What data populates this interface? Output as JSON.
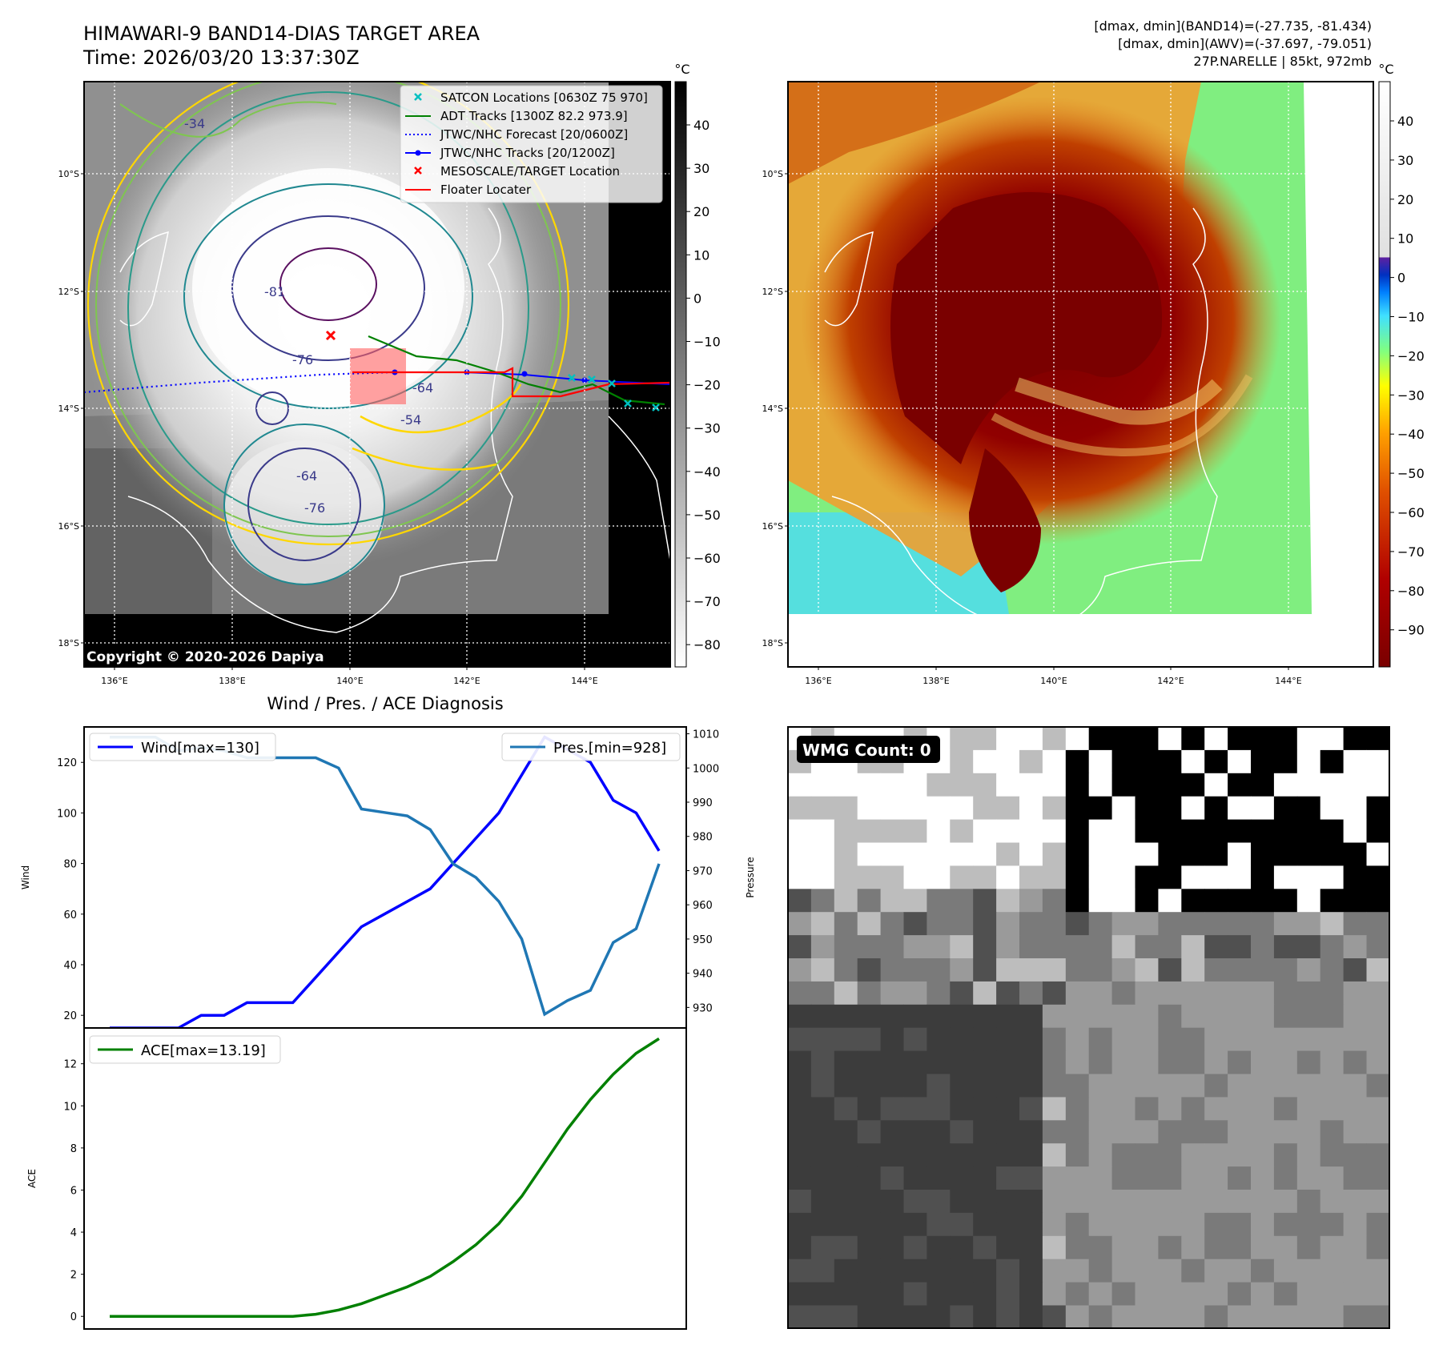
{
  "header": {
    "title": "HIMAWARI-9 BAND14-DIAS TARGET AREA",
    "time": "Time: 2026/03/20 13:37:30Z",
    "stats1": "[dmax, dmin](BAND14)=(-27.735, -81.434)",
    "stats2": "[dmax, dmin](AWV)=(-37.697, -79.051)",
    "storm": "27P.NARELLE | 85kt, 972mb"
  },
  "copyright": "Copyright © 2020-2026 Dapiya",
  "map_axes": {
    "lat_ticks": [
      "10°S",
      "12°S",
      "14°S",
      "16°S",
      "18°S"
    ],
    "lon_ticks": [
      "136°E",
      "138°E",
      "140°E",
      "142°E",
      "144°E"
    ]
  },
  "legend_map": [
    {
      "label": "SATCON Locations [0630Z 75 970]",
      "color": "#00c0c0",
      "marker": "x"
    },
    {
      "label": "ADT Tracks [1300Z 82.2 973.9]",
      "color": "#008000",
      "marker": "line"
    },
    {
      "label": "JTWC/NHC Forecast [20/0600Z]",
      "color": "#0000ff",
      "marker": "dotted"
    },
    {
      "label": "JTWC/NHC Tracks [20/1200Z]",
      "color": "#0000ff",
      "marker": "line-dot"
    },
    {
      "label": "MESOSCALE/TARGET Location",
      "color": "#ff0000",
      "marker": "x"
    },
    {
      "label": "Floater Locater",
      "color": "#ff0000",
      "marker": "line"
    }
  ],
  "contour_labels": [
    "-81",
    "-76",
    "-64",
    "-54",
    "-64",
    "-34",
    "-76"
  ],
  "colorbar_gray": {
    "unit": "°C",
    "ticks": [
      "40",
      "30",
      "20",
      "10",
      "0",
      "−10",
      "−20",
      "−30",
      "−40",
      "−50",
      "−60",
      "−70",
      "−80"
    ]
  },
  "colorbar_color": {
    "unit": "°C",
    "ticks": [
      "40",
      "30",
      "20",
      "10",
      "0",
      "−10",
      "−20",
      "−30",
      "−40",
      "−50",
      "−60",
      "−70",
      "−80",
      "−90"
    ]
  },
  "wmg": {
    "label": "WMG Count: 0"
  },
  "chart_data": [
    {
      "type": "line",
      "title": "Wind / Pres. / ACE Diagnosis",
      "ylabel": "Wind",
      "y2label": "Pressure",
      "ylim": [
        15,
        134
      ],
      "y2lim": [
        924,
        1012
      ],
      "yticks": [
        20,
        40,
        60,
        80,
        100,
        120
      ],
      "y2ticks": [
        930,
        940,
        950,
        960,
        970,
        980,
        990,
        1000,
        1010
      ],
      "series": [
        {
          "name": "Wind[max=130]",
          "color": "#0000ff",
          "axis": "left",
          "values": [
            15,
            15,
            15,
            15,
            20,
            20,
            25,
            25,
            25,
            35,
            45,
            55,
            60,
            65,
            70,
            80,
            90,
            100,
            115,
            130,
            125,
            120,
            105,
            100,
            85
          ]
        },
        {
          "name": "Pres.[min=928]",
          "color": "#1f77b4",
          "axis": "right",
          "values": [
            1009,
            1009,
            1009,
            1005,
            1006,
            1005,
            1003,
            1003,
            1003,
            1003,
            1000,
            988,
            987,
            986,
            982,
            972,
            968,
            961,
            950,
            928,
            932,
            935,
            949,
            953,
            972
          ]
        }
      ]
    },
    {
      "type": "line",
      "ylabel": "ACE",
      "ylim": [
        -0.6,
        13.7
      ],
      "yticks": [
        0,
        2,
        4,
        6,
        8,
        10,
        12
      ],
      "series": [
        {
          "name": "ACE[max=13.19]",
          "color": "#008000",
          "axis": "left",
          "values": [
            0,
            0,
            0,
            0,
            0,
            0,
            0,
            0,
            0,
            0.1,
            0.3,
            0.6,
            1.0,
            1.4,
            1.9,
            2.6,
            3.4,
            4.4,
            5.7,
            7.3,
            8.9,
            10.3,
            11.5,
            12.5,
            13.19
          ]
        }
      ]
    }
  ]
}
